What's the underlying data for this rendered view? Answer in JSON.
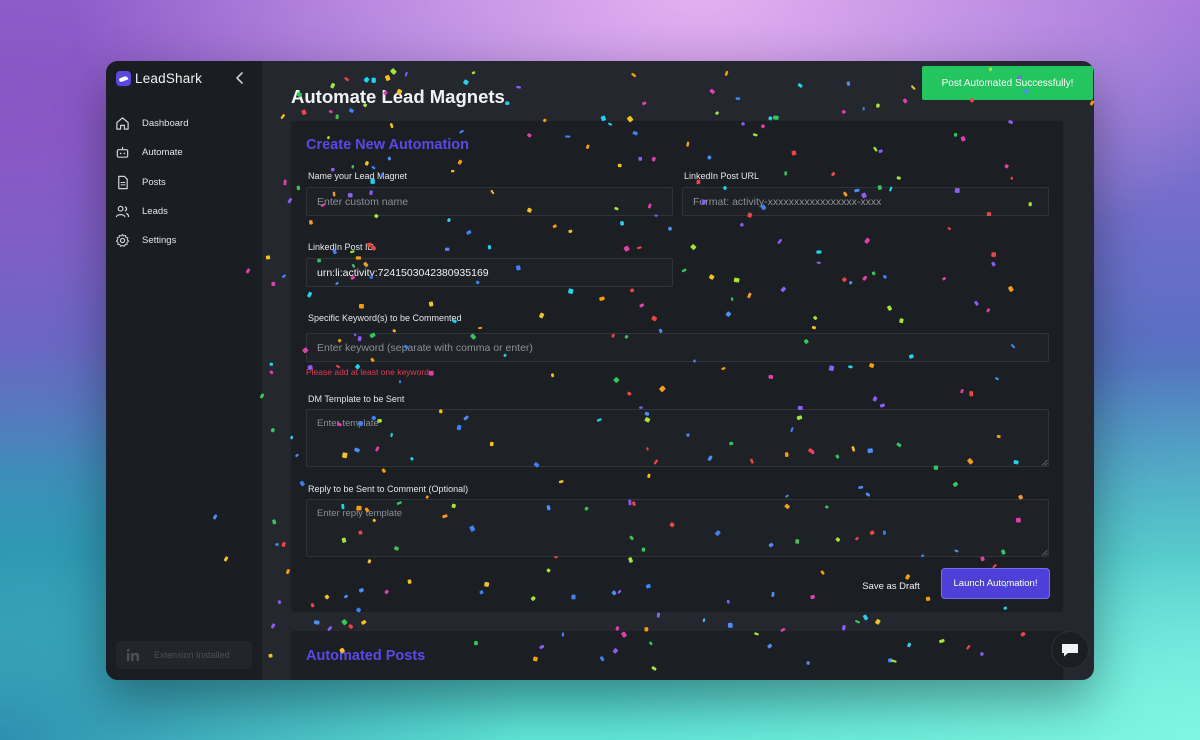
{
  "app": {
    "name": "LeadShark"
  },
  "sidebar": {
    "items": [
      {
        "label": "Dashboard",
        "icon": "home-icon"
      },
      {
        "label": "Automate",
        "icon": "robot-icon"
      },
      {
        "label": "Posts",
        "icon": "document-icon"
      },
      {
        "label": "Leads",
        "icon": "users-icon"
      },
      {
        "label": "Settings",
        "icon": "gear-icon"
      }
    ],
    "extension_label": "Extension Installed"
  },
  "page": {
    "title": "Automate Lead Magnets"
  },
  "toast": {
    "message": "Post Automated Successfully!"
  },
  "form": {
    "title": "Create New Automation",
    "name": {
      "label": "Name your Lead Magnet",
      "placeholder": "Enter custom name",
      "value": ""
    },
    "post_url": {
      "label": "LinkedIn Post URL",
      "placeholder": "Format: activity-xxxxxxxxxxxxxxxxx-xxxx",
      "value": ""
    },
    "post_id": {
      "label": "LinkedIn Post ID",
      "value": "urn:li:activity:7241503042380935169"
    },
    "keywords": {
      "label": "Specific Keyword(s) to be Commented",
      "placeholder": "Enter keyword (separate with comma or enter)",
      "error": "Please add at least one keyword"
    },
    "dm_template": {
      "label": "DM Template to be Sent",
      "placeholder": "Enter template"
    },
    "reply": {
      "label": "Reply to be Sent to Comment (Optional)",
      "placeholder": "Enter reply template"
    },
    "save_draft_label": "Save as Draft",
    "launch_label": "Launch Automation!"
  },
  "automated_posts": {
    "title": "Automated Posts"
  },
  "colors": {
    "accent": "#5b49e6",
    "button": "#4e3fd8",
    "success": "#22c55e",
    "error": "#e23a55",
    "confetti": [
      "#e23fae",
      "#4e8cf6",
      "#f3c21b",
      "#35c759",
      "#8b5cf6",
      "#f59e0b",
      "#22d3ee",
      "#ef4444",
      "#a3e635",
      "#3b82f6"
    ]
  }
}
